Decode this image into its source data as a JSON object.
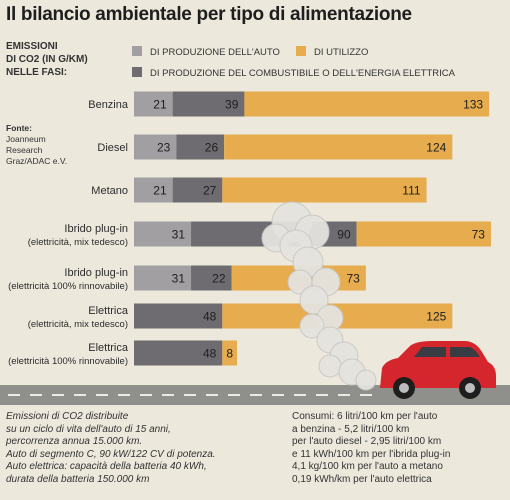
{
  "title": "Il bilancio ambientale per tipo di alimentazione",
  "legend_title": [
    "EMISSIONI",
    "DI CO2 (IN G/KM)",
    "NELLE FASI:"
  ],
  "source": {
    "label": "Fonte:",
    "lines": [
      "Joanneum",
      "Research",
      "Graz/ADAC e.V."
    ]
  },
  "colors": {
    "production_car": "#a19fa1",
    "usage": "#e6ac4e",
    "fuel_production": "#6e6c70",
    "background": "#ece8dc",
    "road": "#8f8f8b",
    "car_body": "#d4262c"
  },
  "chart_data": {
    "type": "bar",
    "stacked": true,
    "orientation": "horizontal",
    "categories": [
      [
        "Benzina"
      ],
      [
        "Diesel"
      ],
      [
        "Metano"
      ],
      [
        "Ibrido plug-in",
        "(elettricità, mix tedesco)"
      ],
      [
        "Ibrido plug-in",
        "(elettricità 100% rinnovabile)"
      ],
      [
        "Elettrica",
        "(elettricità, mix tedesco)"
      ],
      [
        "Elettrica",
        "(elettricità 100% rinnovabile)"
      ]
    ],
    "series": [
      {
        "name": "DI PRODUZIONE DELL'AUTO",
        "color_key": "production_car",
        "values": [
          21,
          23,
          21,
          31,
          31,
          0,
          0
        ]
      },
      {
        "name": "DI PRODUZIONE DEL COMBUSTIBILE O DELL'ENERGIA ELETTRICA",
        "color_key": "fuel_production",
        "values": [
          39,
          26,
          27,
          90,
          22,
          48,
          48
        ]
      },
      {
        "name": "DI UTILIZZO",
        "color_key": "usage",
        "values": [
          133,
          124,
          111,
          73,
          73,
          125,
          8
        ]
      }
    ],
    "value_labels": [
      [
        "21",
        "39",
        "133"
      ],
      [
        "23",
        "26",
        "124"
      ],
      [
        "21",
        "27",
        "111"
      ],
      [
        "31",
        "90",
        "73"
      ],
      [
        "31",
        "22",
        "73"
      ],
      [
        "48",
        "125"
      ],
      [
        "48",
        "8"
      ]
    ],
    "unit": "g/km"
  },
  "footer_left": [
    "Emissioni di CO2 distribuite",
    "su un ciclo di vita dell'auto di 15 anni,",
    "percorrenza annua 15.000 km.",
    "Auto di segmento C, 90 kW/122 CV di potenza.",
    "Auto elettrica: capacità della batteria 40 kWh,",
    "durata della batteria 150.000 km"
  ],
  "footer_right": [
    "Consumi: 6 litri/100 km per l'auto",
    "a benzina - 5,2 litri/100 km",
    "per l'auto diesel - 2,95 litri/100 km",
    "e 11 kWh/100 km per l'ibrida plug-in",
    "4,1 kg/100 km per l'auto a metano",
    "0,19 kWh/km per l'auto elettrica"
  ]
}
